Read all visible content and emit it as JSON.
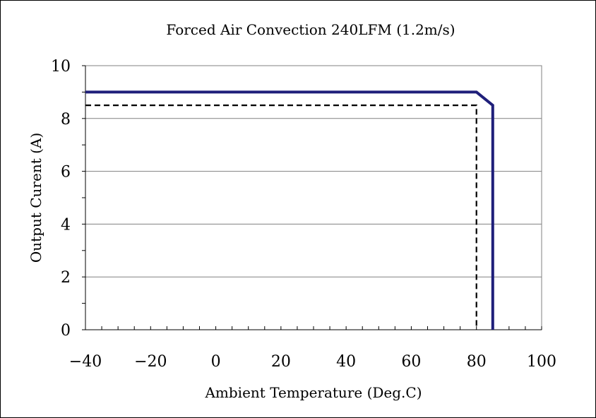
{
  "chart_data": {
    "type": "line",
    "title": "Forced Air Convection 240LFM (1.2m/s)",
    "xlabel": "Ambient Temperature (Deg.C)",
    "ylabel": "Output Curent (A)",
    "xlim": [
      -40,
      100
    ],
    "ylim": [
      0,
      10
    ],
    "x_ticks": [
      -40,
      -20,
      0,
      20,
      40,
      60,
      80,
      100
    ],
    "y_ticks": [
      0,
      2,
      4,
      6,
      8,
      10
    ],
    "x_minor_step": 5,
    "y_minor_step": 1,
    "grid": "horizontal major lines",
    "legend": "none",
    "series": [
      {
        "style": "solid",
        "color": "#1f1f7a",
        "x": [
          -40,
          80,
          85,
          85
        ],
        "y": [
          9,
          9,
          8.5,
          0
        ]
      },
      {
        "style": "dashed",
        "color": "#000000",
        "x": [
          -40,
          80,
          80
        ],
        "y": [
          8.5,
          8.5,
          0
        ]
      }
    ]
  }
}
